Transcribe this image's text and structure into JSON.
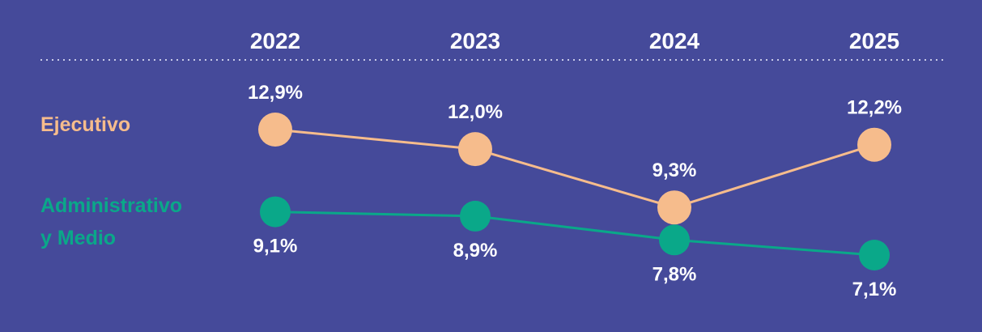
{
  "chart_data": {
    "type": "line",
    "categories": [
      "2022",
      "2023",
      "2024",
      "2025"
    ],
    "series": [
      {
        "name": "Ejecutivo",
        "values": [
          12.9,
          12.0,
          9.3,
          12.2
        ],
        "labels": [
          "12,9%",
          "12,0%",
          "9,3%",
          "12,2%"
        ],
        "color": "#f6bc8c"
      },
      {
        "name": "Administrativo y Medio",
        "name_lines": [
          "Administrativo",
          "y Medio"
        ],
        "values": [
          9.1,
          8.9,
          7.8,
          7.1
        ],
        "labels": [
          "9,1%",
          "8,9%",
          "7,8%",
          "7,1%"
        ],
        "color": "#0aa889"
      }
    ],
    "legend": "left",
    "grid": false
  },
  "colors": {
    "background": "#454a9a",
    "text": "#ffffff",
    "divider": "#c9cbe8"
  }
}
